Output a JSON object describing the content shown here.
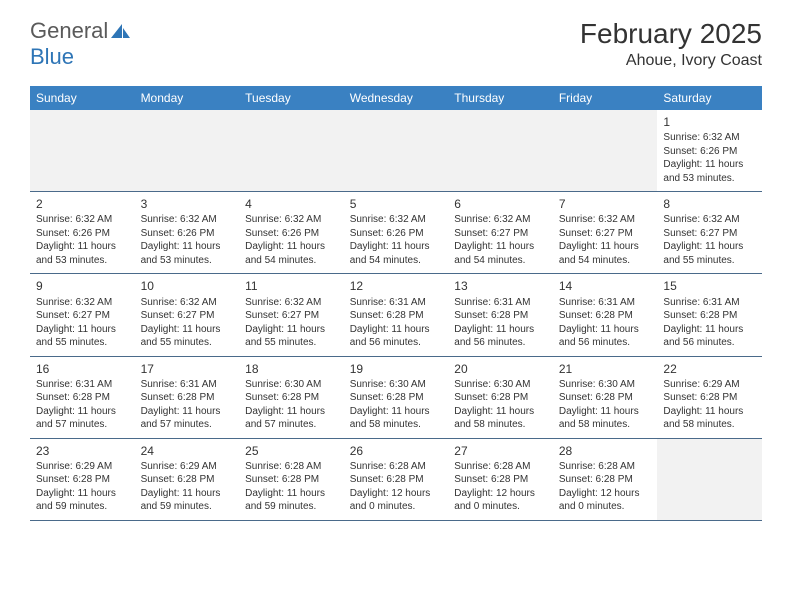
{
  "logo": {
    "word1": "General",
    "word2": "Blue"
  },
  "header": {
    "month_title": "February 2025",
    "location": "Ahoue, Ivory Coast"
  },
  "day_names": [
    "Sunday",
    "Monday",
    "Tuesday",
    "Wednesday",
    "Thursday",
    "Friday",
    "Saturday"
  ],
  "colors": {
    "header_bg": "#3a81c2",
    "header_text": "#ffffff",
    "rule": "#4a6a8a",
    "blank_bg": "#f2f2f2",
    "logo_gray": "#5a5a5a",
    "logo_blue": "#2e75b6"
  },
  "weeks": [
    [
      {
        "blank": true
      },
      {
        "blank": true
      },
      {
        "blank": true
      },
      {
        "blank": true
      },
      {
        "blank": true
      },
      {
        "blank": true
      },
      {
        "day": "1",
        "sunrise": "Sunrise: 6:32 AM",
        "sunset": "Sunset: 6:26 PM",
        "daylight": "Daylight: 11 hours and 53 minutes."
      }
    ],
    [
      {
        "day": "2",
        "sunrise": "Sunrise: 6:32 AM",
        "sunset": "Sunset: 6:26 PM",
        "daylight": "Daylight: 11 hours and 53 minutes."
      },
      {
        "day": "3",
        "sunrise": "Sunrise: 6:32 AM",
        "sunset": "Sunset: 6:26 PM",
        "daylight": "Daylight: 11 hours and 53 minutes."
      },
      {
        "day": "4",
        "sunrise": "Sunrise: 6:32 AM",
        "sunset": "Sunset: 6:26 PM",
        "daylight": "Daylight: 11 hours and 54 minutes."
      },
      {
        "day": "5",
        "sunrise": "Sunrise: 6:32 AM",
        "sunset": "Sunset: 6:26 PM",
        "daylight": "Daylight: 11 hours and 54 minutes."
      },
      {
        "day": "6",
        "sunrise": "Sunrise: 6:32 AM",
        "sunset": "Sunset: 6:27 PM",
        "daylight": "Daylight: 11 hours and 54 minutes."
      },
      {
        "day": "7",
        "sunrise": "Sunrise: 6:32 AM",
        "sunset": "Sunset: 6:27 PM",
        "daylight": "Daylight: 11 hours and 54 minutes."
      },
      {
        "day": "8",
        "sunrise": "Sunrise: 6:32 AM",
        "sunset": "Sunset: 6:27 PM",
        "daylight": "Daylight: 11 hours and 55 minutes."
      }
    ],
    [
      {
        "day": "9",
        "sunrise": "Sunrise: 6:32 AM",
        "sunset": "Sunset: 6:27 PM",
        "daylight": "Daylight: 11 hours and 55 minutes."
      },
      {
        "day": "10",
        "sunrise": "Sunrise: 6:32 AM",
        "sunset": "Sunset: 6:27 PM",
        "daylight": "Daylight: 11 hours and 55 minutes."
      },
      {
        "day": "11",
        "sunrise": "Sunrise: 6:32 AM",
        "sunset": "Sunset: 6:27 PM",
        "daylight": "Daylight: 11 hours and 55 minutes."
      },
      {
        "day": "12",
        "sunrise": "Sunrise: 6:31 AM",
        "sunset": "Sunset: 6:28 PM",
        "daylight": "Daylight: 11 hours and 56 minutes."
      },
      {
        "day": "13",
        "sunrise": "Sunrise: 6:31 AM",
        "sunset": "Sunset: 6:28 PM",
        "daylight": "Daylight: 11 hours and 56 minutes."
      },
      {
        "day": "14",
        "sunrise": "Sunrise: 6:31 AM",
        "sunset": "Sunset: 6:28 PM",
        "daylight": "Daylight: 11 hours and 56 minutes."
      },
      {
        "day": "15",
        "sunrise": "Sunrise: 6:31 AM",
        "sunset": "Sunset: 6:28 PM",
        "daylight": "Daylight: 11 hours and 56 minutes."
      }
    ],
    [
      {
        "day": "16",
        "sunrise": "Sunrise: 6:31 AM",
        "sunset": "Sunset: 6:28 PM",
        "daylight": "Daylight: 11 hours and 57 minutes."
      },
      {
        "day": "17",
        "sunrise": "Sunrise: 6:31 AM",
        "sunset": "Sunset: 6:28 PM",
        "daylight": "Daylight: 11 hours and 57 minutes."
      },
      {
        "day": "18",
        "sunrise": "Sunrise: 6:30 AM",
        "sunset": "Sunset: 6:28 PM",
        "daylight": "Daylight: 11 hours and 57 minutes."
      },
      {
        "day": "19",
        "sunrise": "Sunrise: 6:30 AM",
        "sunset": "Sunset: 6:28 PM",
        "daylight": "Daylight: 11 hours and 58 minutes."
      },
      {
        "day": "20",
        "sunrise": "Sunrise: 6:30 AM",
        "sunset": "Sunset: 6:28 PM",
        "daylight": "Daylight: 11 hours and 58 minutes."
      },
      {
        "day": "21",
        "sunrise": "Sunrise: 6:30 AM",
        "sunset": "Sunset: 6:28 PM",
        "daylight": "Daylight: 11 hours and 58 minutes."
      },
      {
        "day": "22",
        "sunrise": "Sunrise: 6:29 AM",
        "sunset": "Sunset: 6:28 PM",
        "daylight": "Daylight: 11 hours and 58 minutes."
      }
    ],
    [
      {
        "day": "23",
        "sunrise": "Sunrise: 6:29 AM",
        "sunset": "Sunset: 6:28 PM",
        "daylight": "Daylight: 11 hours and 59 minutes."
      },
      {
        "day": "24",
        "sunrise": "Sunrise: 6:29 AM",
        "sunset": "Sunset: 6:28 PM",
        "daylight": "Daylight: 11 hours and 59 minutes."
      },
      {
        "day": "25",
        "sunrise": "Sunrise: 6:28 AM",
        "sunset": "Sunset: 6:28 PM",
        "daylight": "Daylight: 11 hours and 59 minutes."
      },
      {
        "day": "26",
        "sunrise": "Sunrise: 6:28 AM",
        "sunset": "Sunset: 6:28 PM",
        "daylight": "Daylight: 12 hours and 0 minutes."
      },
      {
        "day": "27",
        "sunrise": "Sunrise: 6:28 AM",
        "sunset": "Sunset: 6:28 PM",
        "daylight": "Daylight: 12 hours and 0 minutes."
      },
      {
        "day": "28",
        "sunrise": "Sunrise: 6:28 AM",
        "sunset": "Sunset: 6:28 PM",
        "daylight": "Daylight: 12 hours and 0 minutes."
      },
      {
        "blank": true
      }
    ]
  ]
}
